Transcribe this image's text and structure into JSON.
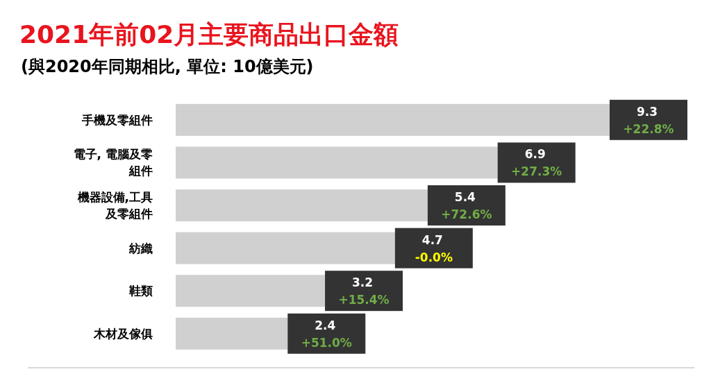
{
  "chart_data": {
    "type": "bar",
    "orientation": "horizontal",
    "title": "2021年前02月主要商品出口金額",
    "subtitle": "(與2020年同期相比, 單位: 10億美元)",
    "categories": [
      "手機及零組件",
      "電子, 電腦及零組件",
      "機器設備,工具及零組件",
      "紡織",
      "鞋類",
      "木材及傢俱"
    ],
    "values": [
      9.3,
      6.9,
      5.4,
      4.7,
      3.2,
      2.4
    ],
    "color": "#d0d0d0",
    "data_labels": true,
    "annotations": [
      {
        "text": "+22.8%",
        "x": 9.3,
        "y": "手機及零組件"
      },
      {
        "text": "+27.3%",
        "x": 6.9,
        "y": "電子, 電腦及零組件"
      },
      {
        "text": "+72.6%",
        "x": 5.4,
        "y": "機器設備,工具及零組件"
      },
      {
        "text": "-0.0%",
        "x": 4.7,
        "y": "紡織"
      },
      {
        "text": "+15.4%",
        "x": 3.2,
        "y": "鞋類"
      },
      {
        "text": "+51.0%",
        "x": 2.4,
        "y": "木材及傢俱"
      }
    ]
  }
}
